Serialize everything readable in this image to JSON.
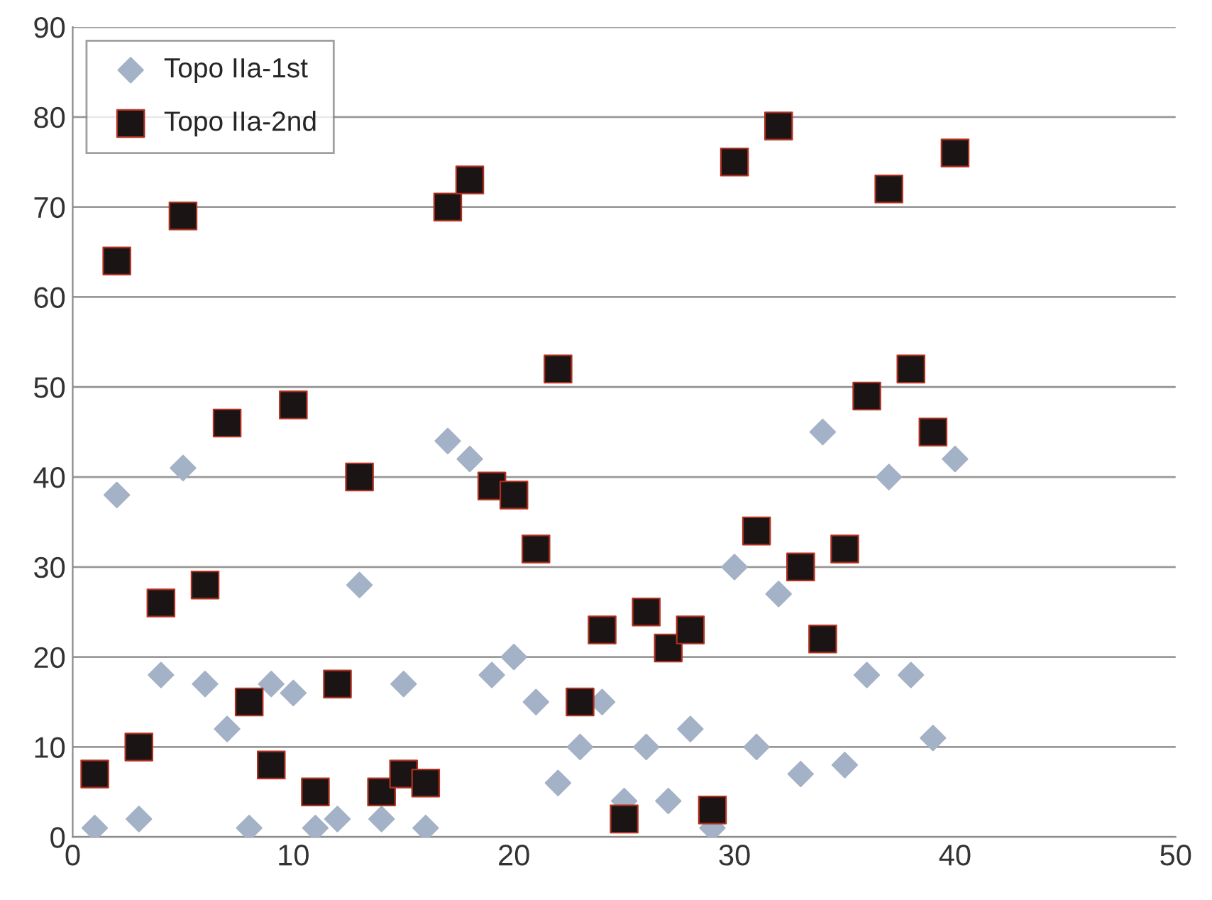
{
  "chart_data": {
    "type": "scatter",
    "x": [
      1,
      2,
      3,
      4,
      5,
      6,
      7,
      8,
      9,
      10,
      11,
      12,
      13,
      14,
      15,
      16,
      17,
      18,
      19,
      20,
      21,
      22,
      23,
      24,
      25,
      26,
      27,
      28,
      29,
      30,
      31,
      32,
      33,
      34,
      35,
      36,
      37,
      38,
      39,
      40
    ],
    "series": [
      {
        "name": "Topo IIa-1st",
        "color": "#a3b2c6",
        "marker": "diamond",
        "values": [
          1,
          38,
          2,
          18,
          41,
          17,
          12,
          1,
          17,
          16,
          1,
          2,
          28,
          2,
          17,
          1,
          44,
          42,
          18,
          20,
          15,
          6,
          10,
          15,
          4,
          10,
          4,
          12,
          1,
          30,
          10,
          27,
          7,
          45,
          8,
          18,
          40,
          18,
          11,
          42
        ]
      },
      {
        "name": "Topo IIa-2nd",
        "color": "#1a1414",
        "marker": "square",
        "values": [
          7,
          64,
          10,
          26,
          69,
          28,
          46,
          15,
          8,
          48,
          5,
          17,
          40,
          5,
          7,
          6,
          70,
          73,
          39,
          38,
          32,
          52,
          15,
          23,
          2,
          25,
          21,
          23,
          3,
          75,
          34,
          79,
          30,
          22,
          32,
          49,
          72,
          52,
          45,
          76
        ]
      }
    ],
    "xlim": [
      0,
      50
    ],
    "xticks": [
      0,
      10,
      20,
      30,
      40,
      50
    ],
    "ylim": [
      0,
      90
    ],
    "yticks": [
      0,
      10,
      20,
      30,
      40,
      50,
      60,
      70,
      80,
      90
    ],
    "grid": "y",
    "legend": "top left"
  }
}
